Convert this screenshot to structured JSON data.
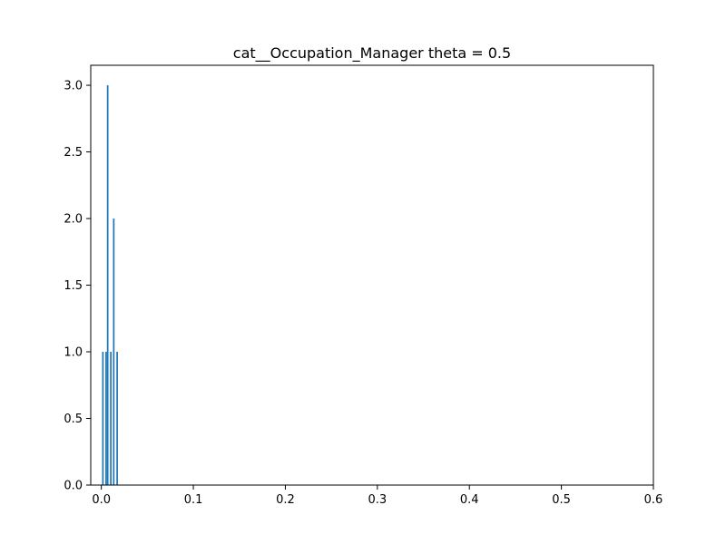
{
  "chart_data": {
    "type": "bar",
    "title": "cat__Occupation_Manager theta = 0.5",
    "xlabel": "",
    "ylabel": "",
    "xlim": [
      -0.0115,
      0.6
    ],
    "ylim": [
      0,
      3.15
    ],
    "x_ticks": [
      0.0,
      0.1,
      0.2,
      0.3,
      0.4,
      0.5,
      0.6
    ],
    "x_tick_labels": [
      "0.0",
      "0.1",
      "0.2",
      "0.3",
      "0.4",
      "0.5",
      "0.6"
    ],
    "y_ticks": [
      0.0,
      0.5,
      1.0,
      1.5,
      2.0,
      2.5,
      3.0
    ],
    "y_tick_labels": [
      "0.0",
      "0.5",
      "1.0",
      "1.5",
      "2.0",
      "2.5",
      "3.0"
    ],
    "bar_width": 0.0017,
    "bars": [
      {
        "x": 0.0017,
        "value": 1
      },
      {
        "x": 0.0052,
        "value": 1
      },
      {
        "x": 0.0069,
        "value": 3
      },
      {
        "x": 0.0103,
        "value": 1
      },
      {
        "x": 0.0135,
        "value": 2
      },
      {
        "x": 0.0172,
        "value": 1
      }
    ],
    "bar_color": "#1f77b4",
    "grid": false,
    "legend": "none"
  }
}
